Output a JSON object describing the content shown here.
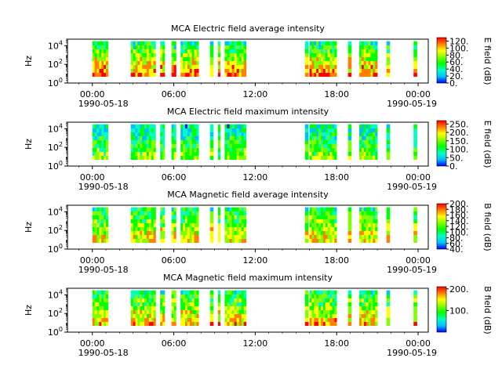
{
  "colors": {
    "background": "#ffffff",
    "axis": "#000000",
    "colormap": [
      "#ff0000",
      "#ff7f00",
      "#ffff00",
      "#7fff00",
      "#00ff00",
      "#00ffbf",
      "#00bfff",
      "#0000ff"
    ]
  },
  "chart_data": [
    {
      "type": "heatmap",
      "title": "MCA  Electric field average intensity",
      "ylabel": "Hz",
      "yscale": "log",
      "ylim": [
        1,
        50000
      ],
      "yticks": [
        "10^0",
        "10^2",
        "10^4"
      ],
      "xlim": [
        "1990-05-17 22:10",
        "1990-05-19 00:45"
      ],
      "xticks": [
        "00:00",
        "06:00",
        "12:00",
        "18:00",
        "00:00"
      ],
      "xdates": [
        "1990-05-18",
        "1990-05-19"
      ],
      "colorbar": {
        "label": "E field (dB)",
        "ticks": [
          "0.",
          "20.",
          "40.",
          "60.",
          "80.",
          "100.",
          "120."
        ],
        "range": [
          0,
          130
        ]
      },
      "data_intervals": [
        [
          "00:00",
          "01:10"
        ],
        [
          "02:50",
          "04:40"
        ],
        [
          "05:00",
          "05:20"
        ],
        [
          "05:50",
          "06:10"
        ],
        [
          "06:30",
          "07:50"
        ],
        [
          "08:40",
          "08:55"
        ],
        [
          "09:15",
          "09:25"
        ],
        [
          "09:45",
          "11:20"
        ],
        [
          "15:40",
          "15:55"
        ],
        [
          "16:00",
          "18:00"
        ],
        [
          "18:50",
          "19:05"
        ],
        [
          "19:40",
          "21:00"
        ],
        [
          "21:40",
          "21:55"
        ],
        [
          "23:40",
          "23:55"
        ]
      ]
    },
    {
      "type": "heatmap",
      "title": "MCA  Electric field maximum intensity",
      "ylabel": "Hz",
      "yscale": "log",
      "ylim": [
        1,
        50000
      ],
      "yticks": [
        "10^0",
        "10^2",
        "10^4"
      ],
      "xlim": [
        "1990-05-17 22:10",
        "1990-05-19 00:45"
      ],
      "xticks": [
        "00:00",
        "06:00",
        "12:00",
        "18:00",
        "00:00"
      ],
      "xdates": [
        "1990-05-18",
        "1990-05-19"
      ],
      "colorbar": {
        "label": "E field (dB)",
        "ticks": [
          "0.",
          "50.",
          "100.",
          "150.",
          "200.",
          "250."
        ],
        "range": [
          0,
          270
        ]
      },
      "data_intervals": [
        [
          "00:00",
          "01:10"
        ],
        [
          "02:50",
          "04:40"
        ],
        [
          "05:00",
          "05:20"
        ],
        [
          "05:50",
          "06:10"
        ],
        [
          "06:30",
          "07:50"
        ],
        [
          "08:40",
          "08:55"
        ],
        [
          "09:15",
          "09:25"
        ],
        [
          "09:45",
          "11:20"
        ],
        [
          "15:40",
          "15:55"
        ],
        [
          "16:00",
          "18:00"
        ],
        [
          "18:50",
          "19:05"
        ],
        [
          "19:40",
          "21:00"
        ],
        [
          "21:40",
          "21:55"
        ],
        [
          "23:40",
          "23:55"
        ]
      ]
    },
    {
      "type": "heatmap",
      "title": "MCA  Magnetic field average intensity",
      "ylabel": "Hz",
      "yscale": "log",
      "ylim": [
        1,
        50000
      ],
      "yticks": [
        "10^0",
        "10^2",
        "10^4"
      ],
      "xlim": [
        "1990-05-17 22:10",
        "1990-05-19 00:45"
      ],
      "xticks": [
        "00:00",
        "06:00",
        "12:00",
        "18:00",
        "00:00"
      ],
      "xdates": [
        "1990-05-18",
        "1990-05-19"
      ],
      "colorbar": {
        "label": "B field (dB)",
        "ticks": [
          "40.",
          "60.",
          "80.",
          "100.",
          "120.",
          "140.",
          "160.",
          "180.",
          "200."
        ],
        "range": [
          40,
          200
        ]
      },
      "data_intervals": [
        [
          "00:00",
          "01:10"
        ],
        [
          "02:50",
          "04:40"
        ],
        [
          "05:00",
          "05:20"
        ],
        [
          "05:50",
          "06:10"
        ],
        [
          "06:30",
          "07:50"
        ],
        [
          "08:40",
          "08:55"
        ],
        [
          "09:15",
          "09:25"
        ],
        [
          "09:45",
          "11:20"
        ],
        [
          "15:40",
          "15:55"
        ],
        [
          "16:00",
          "18:00"
        ],
        [
          "18:50",
          "19:05"
        ],
        [
          "19:40",
          "21:00"
        ],
        [
          "21:40",
          "21:55"
        ],
        [
          "23:40",
          "23:55"
        ]
      ]
    },
    {
      "type": "heatmap",
      "title": "MCA  Magnetic field maximum intensity",
      "ylabel": "Hz",
      "yscale": "log",
      "ylim": [
        1,
        50000
      ],
      "yticks": [
        "10^0",
        "10^2",
        "10^4"
      ],
      "xlim": [
        "1990-05-17 22:10",
        "1990-05-19 00:45"
      ],
      "xticks": [
        "00:00",
        "06:00",
        "12:00",
        "18:00",
        "00:00"
      ],
      "xdates": [
        "1990-05-18",
        "1990-05-19"
      ],
      "colorbar": {
        "label": "B field (dB)",
        "ticks": [
          "100.",
          "200."
        ],
        "range": [
          0,
          210
        ]
      },
      "data_intervals": [
        [
          "00:00",
          "01:10"
        ],
        [
          "02:50",
          "04:40"
        ],
        [
          "05:00",
          "05:20"
        ],
        [
          "05:50",
          "06:10"
        ],
        [
          "06:30",
          "07:50"
        ],
        [
          "08:40",
          "08:55"
        ],
        [
          "09:15",
          "09:25"
        ],
        [
          "09:45",
          "11:20"
        ],
        [
          "15:40",
          "15:55"
        ],
        [
          "16:00",
          "18:00"
        ],
        [
          "18:50",
          "19:05"
        ],
        [
          "19:40",
          "21:00"
        ],
        [
          "21:40",
          "21:55"
        ],
        [
          "23:40",
          "23:55"
        ]
      ]
    }
  ]
}
